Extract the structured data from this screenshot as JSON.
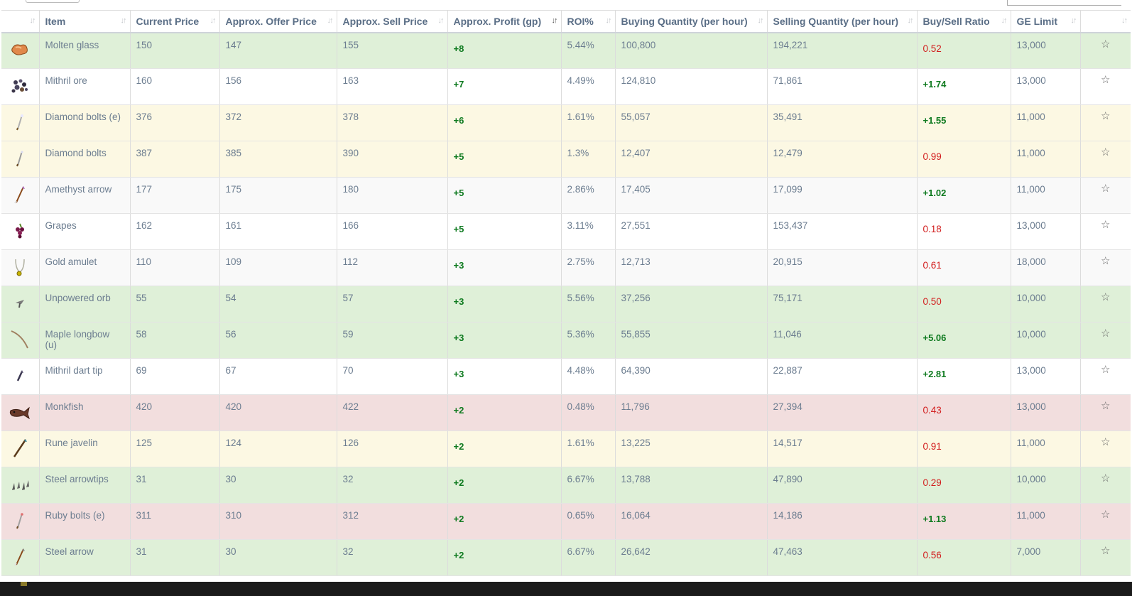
{
  "headers": {
    "icon": "",
    "item": "Item",
    "current_price": "Current Price",
    "offer_price": "Approx. Offer Price",
    "sell_price": "Approx. Sell Price",
    "profit": "Approx. Profit (gp)",
    "roi": "ROI%",
    "buy_qty": "Buying Quantity (per hour)",
    "sell_qty": "Selling Quantity (per hour)",
    "ratio": "Buy/Sell Ratio",
    "ge_limit": "GE Limit",
    "fav": ""
  },
  "icons": {
    "sort": "sort-arrows-icon",
    "sort_active": "sort-desc-icon",
    "favorite": "star-outline-icon",
    "favorite_glyph": "☆"
  },
  "colors": {
    "profit_positive": "#0e7a1f",
    "ratio_negative": "#d21e1e",
    "row_green": "#dff0d8",
    "row_yellow": "#fcf8e3",
    "row_red": "#f2dede",
    "row_grey": "#f9f9f9"
  },
  "rows": [
    {
      "icon": "molten-glass-icon",
      "name": "Molten glass",
      "current": "150",
      "offer": "147",
      "sell": "155",
      "profit": "+8",
      "roi": "5.44%",
      "buy_qty": "100,800",
      "sell_qty": "194,221",
      "ratio": "0.52",
      "ratio_sign": "neg",
      "limit": "13,000",
      "tint": "green"
    },
    {
      "icon": "mithril-ore-icon",
      "name": "Mithril ore",
      "current": "160",
      "offer": "156",
      "sell": "163",
      "profit": "+7",
      "roi": "4.49%",
      "buy_qty": "124,810",
      "sell_qty": "71,861",
      "ratio": "+1.74",
      "ratio_sign": "pos",
      "limit": "13,000",
      "tint": "white"
    },
    {
      "icon": "diamond-bolts-e-icon",
      "name": "Diamond bolts (e)",
      "current": "376",
      "offer": "372",
      "sell": "378",
      "profit": "+6",
      "roi": "1.61%",
      "buy_qty": "55,057",
      "sell_qty": "35,491",
      "ratio": "+1.55",
      "ratio_sign": "pos",
      "limit": "11,000",
      "tint": "yellow"
    },
    {
      "icon": "diamond-bolts-icon",
      "name": "Diamond bolts",
      "current": "387",
      "offer": "385",
      "sell": "390",
      "profit": "+5",
      "roi": "1.3%",
      "buy_qty": "12,407",
      "sell_qty": "12,479",
      "ratio": "0.99",
      "ratio_sign": "neg",
      "limit": "11,000",
      "tint": "yellow"
    },
    {
      "icon": "amethyst-arrow-icon",
      "name": "Amethyst arrow",
      "current": "177",
      "offer": "175",
      "sell": "180",
      "profit": "+5",
      "roi": "2.86%",
      "buy_qty": "17,405",
      "sell_qty": "17,099",
      "ratio": "+1.02",
      "ratio_sign": "pos",
      "limit": "11,000",
      "tint": "grey"
    },
    {
      "icon": "grapes-icon",
      "name": "Grapes",
      "current": "162",
      "offer": "161",
      "sell": "166",
      "profit": "+5",
      "roi": "3.11%",
      "buy_qty": "27,551",
      "sell_qty": "153,437",
      "ratio": "0.18",
      "ratio_sign": "neg",
      "limit": "13,000",
      "tint": "white"
    },
    {
      "icon": "gold-amulet-icon",
      "name": "Gold amulet",
      "current": "110",
      "offer": "109",
      "sell": "112",
      "profit": "+3",
      "roi": "2.75%",
      "buy_qty": "12,713",
      "sell_qty": "20,915",
      "ratio": "0.61",
      "ratio_sign": "neg",
      "limit": "18,000",
      "tint": "grey"
    },
    {
      "icon": "unpowered-orb-icon",
      "name": "Unpowered orb",
      "current": "55",
      "offer": "54",
      "sell": "57",
      "profit": "+3",
      "roi": "5.56%",
      "buy_qty": "37,256",
      "sell_qty": "75,171",
      "ratio": "0.50",
      "ratio_sign": "neg",
      "limit": "10,000",
      "tint": "green"
    },
    {
      "icon": "maple-longbow-u-icon",
      "name": "Maple longbow (u)",
      "current": "58",
      "offer": "56",
      "sell": "59",
      "profit": "+3",
      "roi": "5.36%",
      "buy_qty": "55,855",
      "sell_qty": "11,046",
      "ratio": "+5.06",
      "ratio_sign": "pos",
      "limit": "10,000",
      "tint": "green"
    },
    {
      "icon": "mithril-dart-tip-icon",
      "name": "Mithril dart tip",
      "current": "69",
      "offer": "67",
      "sell": "70",
      "profit": "+3",
      "roi": "4.48%",
      "buy_qty": "64,390",
      "sell_qty": "22,887",
      "ratio": "+2.81",
      "ratio_sign": "pos",
      "limit": "13,000",
      "tint": "white"
    },
    {
      "icon": "monkfish-icon",
      "name": "Monkfish",
      "current": "420",
      "offer": "420",
      "sell": "422",
      "profit": "+2",
      "roi": "0.48%",
      "buy_qty": "11,796",
      "sell_qty": "27,394",
      "ratio": "0.43",
      "ratio_sign": "neg",
      "limit": "13,000",
      "tint": "red"
    },
    {
      "icon": "rune-javelin-icon",
      "name": "Rune javelin",
      "current": "125",
      "offer": "124",
      "sell": "126",
      "profit": "+2",
      "roi": "1.61%",
      "buy_qty": "13,225",
      "sell_qty": "14,517",
      "ratio": "0.91",
      "ratio_sign": "neg",
      "limit": "11,000",
      "tint": "yellow"
    },
    {
      "icon": "steel-arrowtips-icon",
      "name": "Steel arrowtips",
      "current": "31",
      "offer": "30",
      "sell": "32",
      "profit": "+2",
      "roi": "6.67%",
      "buy_qty": "13,788",
      "sell_qty": "47,890",
      "ratio": "0.29",
      "ratio_sign": "neg",
      "limit": "10,000",
      "tint": "green"
    },
    {
      "icon": "ruby-bolts-e-icon",
      "name": "Ruby bolts (e)",
      "current": "311",
      "offer": "310",
      "sell": "312",
      "profit": "+2",
      "roi": "0.65%",
      "buy_qty": "16,064",
      "sell_qty": "14,186",
      "ratio": "+1.13",
      "ratio_sign": "pos",
      "limit": "11,000",
      "tint": "red"
    },
    {
      "icon": "steel-arrow-icon",
      "name": "Steel arrow",
      "current": "31",
      "offer": "30",
      "sell": "32",
      "profit": "+2",
      "roi": "6.67%",
      "buy_qty": "26,642",
      "sell_qty": "47,463",
      "ratio": "0.56",
      "ratio_sign": "neg",
      "limit": "7,000",
      "tint": "green"
    }
  ]
}
